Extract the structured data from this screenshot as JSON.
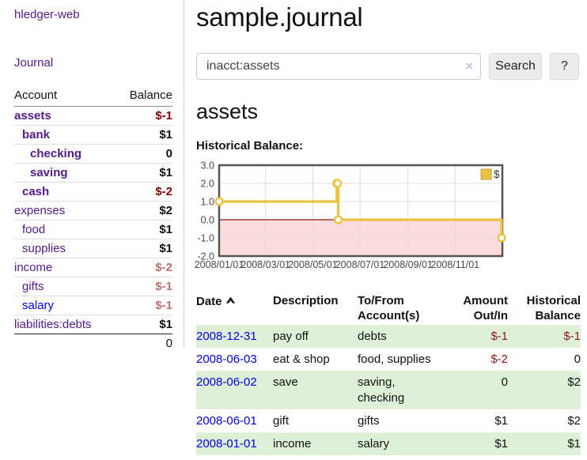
{
  "app": {
    "title": "hledger-web"
  },
  "sidebar": {
    "journal_link": "Journal",
    "accounts": {
      "headers": {
        "account": "Account",
        "balance": "Balance"
      },
      "rows": [
        {
          "name": "assets",
          "indent": 0,
          "bold": true,
          "balance": "$-1",
          "neg": "strong"
        },
        {
          "name": "bank",
          "indent": 1,
          "bold": true,
          "balance": "$1",
          "neg": "none"
        },
        {
          "name": "checking",
          "indent": 2,
          "bold": true,
          "balance": "0",
          "neg": "none"
        },
        {
          "name": "saving",
          "indent": 2,
          "bold": true,
          "balance": "$1",
          "neg": "none"
        },
        {
          "name": "cash",
          "indent": 1,
          "bold": true,
          "balance": "$-2",
          "neg": "strong"
        },
        {
          "name": "expenses",
          "indent": 0,
          "bold": false,
          "balance": "$2",
          "neg": "none"
        },
        {
          "name": "food",
          "indent": 1,
          "bold": false,
          "balance": "$1",
          "neg": "none"
        },
        {
          "name": "supplies",
          "indent": 1,
          "bold": false,
          "balance": "$1",
          "neg": "none"
        },
        {
          "name": "income",
          "indent": 0,
          "bold": false,
          "balance": "$-2",
          "neg": "muted"
        },
        {
          "name": "gifts",
          "indent": 1,
          "bold": false,
          "balance": "$-1",
          "neg": "muted"
        },
        {
          "name": "salary",
          "indent": 1,
          "bold": false,
          "balance": "$-1",
          "neg": "muted",
          "link": "blue"
        },
        {
          "name": "liabilities:debts",
          "indent": 0,
          "bold": false,
          "balance": "$1",
          "neg": "none"
        }
      ],
      "total": "0"
    }
  },
  "main": {
    "title": "sample.journal",
    "search": {
      "value": "inacct:assets",
      "clear_icon": "×",
      "button_label": "Search",
      "help_label": "?"
    },
    "account_heading": "assets",
    "chart_label": "Historical Balance:"
  },
  "chart_data": {
    "type": "line",
    "title": "Historical Balance",
    "step": true,
    "series": [
      {
        "name": "$",
        "color": "#edc240",
        "points": [
          [
            "2008-01-01",
            1
          ],
          [
            "2008-06-01",
            2
          ],
          [
            "2008-06-02",
            2
          ],
          [
            "2008-06-03",
            0
          ],
          [
            "2008-12-31",
            -1
          ]
        ]
      }
    ],
    "x_range": [
      "2008-01-01",
      "2009-01-01"
    ],
    "x_ticks": [
      "2008/01/01",
      "2008/03/01",
      "2008/05/01",
      "2008/07/01",
      "2008/09/01",
      "2008/11/01"
    ],
    "y_ticks": [
      3.0,
      2.0,
      1.0,
      0.0,
      -1.0,
      -2.0
    ],
    "ylim": [
      -2,
      3
    ],
    "grid": true,
    "legend": {
      "label": "$",
      "position": "top-right"
    },
    "negative_region_color": "#fbdcdc",
    "zero_line_color": "#8b1a1a",
    "border_color": "#545454"
  },
  "register": {
    "headers": [
      "Date",
      "Description",
      "To/From Account(s)",
      "Amount Out/In",
      "Historical Balance"
    ],
    "sort": "ascending",
    "rows": [
      {
        "date": "2008-12-31",
        "description": "pay off",
        "accounts": "debts",
        "amount": "$-1",
        "amount_neg": true,
        "balance": "$-1",
        "balance_neg": true
      },
      {
        "date": "2008-06-03",
        "description": "eat & shop",
        "accounts": "food, supplies",
        "amount": "$-2",
        "amount_neg": true,
        "balance": "0",
        "balance_neg": false
      },
      {
        "date": "2008-06-02",
        "description": "save",
        "accounts": "saving, checking",
        "amount": "0",
        "amount_neg": false,
        "balance": "$2",
        "balance_neg": false
      },
      {
        "date": "2008-06-01",
        "description": "gift",
        "accounts": "gifts",
        "amount": "$1",
        "amount_neg": false,
        "balance": "$2",
        "balance_neg": false
      },
      {
        "date": "2008-01-01",
        "description": "income",
        "accounts": "salary",
        "amount": "$1",
        "amount_neg": false,
        "balance": "$1",
        "balance_neg": false
      }
    ]
  },
  "colors": {
    "link_purple": "#551a8b",
    "link_blue": "#0000ee",
    "negative_strong": "#8b0000",
    "negative_muted": "#c0706e",
    "row_stripe_green": "#dff0d8",
    "chart_line_gold": "#edc240"
  }
}
